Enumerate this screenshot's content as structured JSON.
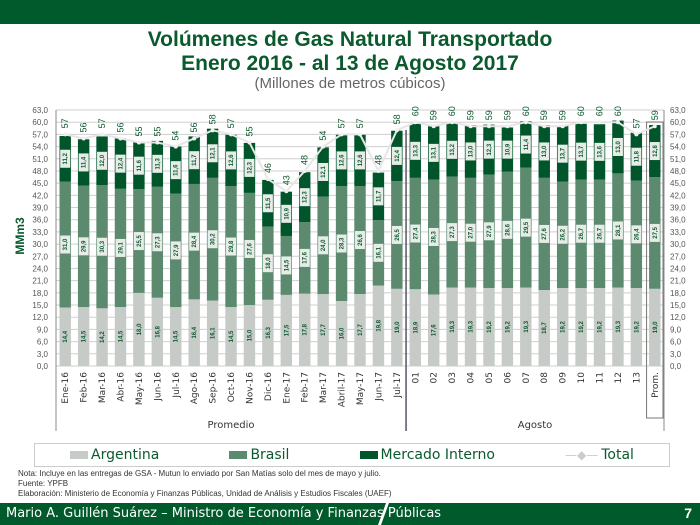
{
  "header": {
    "title_line1": "Volúmenes de Gas Natural Transportado",
    "title_line2": "Enero 2016 - al 13 de Agosto 2017",
    "subtitle": "(Millones de metros cúbicos)"
  },
  "legend": {
    "argentina": "Argentina",
    "brasil": "Brasil",
    "mercado": "Mercado Interno",
    "total": "Total"
  },
  "colors": {
    "argentina": "#c6cbc7",
    "brasil": "#5b8a6e",
    "mercado": "#00562a",
    "total": "#e6e6e6",
    "title": "#0b5a2e"
  },
  "notes": {
    "nota": "Nota: Incluye en las entregas de GSA - Mutun lo enviado por San Matías solo del mes de mayo y julio.",
    "fuente": "Fuente: YPFB",
    "elaboracion": "Elaboración: Ministerio de Economía y Finanzas Públicas, Unidad de Análisis y Estudios Fiscales (UAEF)"
  },
  "footer": {
    "author": "Mario A. Guillén Suárez – Ministro de Economía y Finanzas Públicas",
    "page": "7"
  },
  "chart_data": {
    "type": "bar",
    "stacked": true,
    "ylabel": "MMm3",
    "ylim": [
      0,
      63
    ],
    "yticks": [
      "0,0",
      "3,0",
      "6,0",
      "9,0",
      "12,0",
      "15,0",
      "18,0",
      "21,0",
      "24,0",
      "27,0",
      "30,0",
      "33,0",
      "36,0",
      "39,0",
      "42,0",
      "45,0",
      "48,0",
      "51,0",
      "54,0",
      "57,0",
      "60,0",
      "63,0"
    ],
    "grid": true,
    "groups": [
      {
        "label": "Promedio",
        "count": 19
      },
      {
        "label": "Agosto",
        "count": 14
      }
    ],
    "categories": [
      "Ene-16",
      "Feb-16",
      "Mar-16",
      "Abr-16",
      "May-16",
      "Jun-16",
      "Jul-16",
      "Ago-16",
      "Sep-16",
      "Oct-16",
      "Nov-16",
      "Dic-16",
      "Ene-17",
      "Feb-17",
      "Mar-17",
      "Abril-17",
      "May-17",
      "Jun-17",
      "Jul-17",
      "01",
      "02",
      "03",
      "04",
      "05",
      "06",
      "07",
      "08",
      "09",
      "10",
      "11",
      "12",
      "13",
      "Prom."
    ],
    "series": [
      {
        "name": "Argentina",
        "values": [
          14.4,
          14.5,
          14.2,
          14.5,
          18.0,
          16.8,
          14.5,
          16.4,
          16.1,
          14.5,
          15.0,
          16.3,
          17.5,
          17.8,
          17.7,
          16.0,
          17.7,
          19.8,
          19.0,
          18.9,
          17.6,
          19.3,
          19.3,
          19.2,
          19.2,
          19.3,
          18.7,
          19.2,
          19.2,
          19.2,
          19.3,
          19.2,
          19.0
        ]
      },
      {
        "name": "Brasil",
        "values": [
          31.0,
          29.9,
          30.3,
          29.1,
          25.5,
          27.3,
          27.9,
          28.4,
          30.2,
          29.8,
          27.6,
          18.0,
          14.5,
          17.6,
          24.0,
          28.3,
          26.6,
          16.1,
          26.5,
          27.4,
          28.3,
          27.3,
          27.0,
          27.9,
          28.6,
          29.5,
          27.6,
          26.2,
          26.7,
          26.7,
          28.1,
          26.4,
          27.5
        ]
      },
      {
        "name": "Mercado Interno",
        "values": [
          11.2,
          11.4,
          12.0,
          12.4,
          11.6,
          11.3,
          11.6,
          11.7,
          12.1,
          12.6,
          12.3,
          11.5,
          10.9,
          12.3,
          12.1,
          12.6,
          12.6,
          11.7,
          12.4,
          13.3,
          13.1,
          13.2,
          13.0,
          12.3,
          10.9,
          11.4,
          13.0,
          13.7,
          13.7,
          13.6,
          13.0,
          11.8,
          12.8
        ]
      }
    ],
    "totals": [
      57,
      56,
      57,
      56,
      55,
      55,
      54,
      56,
      58,
      57,
      55,
      46,
      43,
      48,
      54,
      57,
      57,
      48,
      58,
      60,
      59,
      60,
      59,
      59,
      59,
      60,
      59,
      59,
      60,
      60,
      60,
      57,
      59
    ]
  }
}
